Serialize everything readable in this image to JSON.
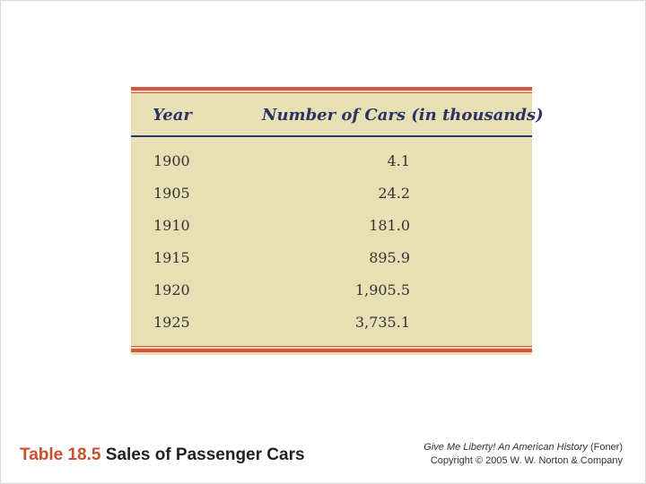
{
  "table": {
    "headers": {
      "year": "Year",
      "cars": "Number of Cars (in thousands)"
    },
    "rows": [
      {
        "year": "1900",
        "cars": "4.1"
      },
      {
        "year": "1905",
        "cars": "24.2"
      },
      {
        "year": "1910",
        "cars": "181.0"
      },
      {
        "year": "1915",
        "cars": "895.9"
      },
      {
        "year": "1920",
        "cars": "1,905.5"
      },
      {
        "year": "1925",
        "cars": "3,735.1"
      }
    ]
  },
  "caption": {
    "number": "Table 18.5",
    "title": "Sales of Passenger Cars"
  },
  "credit": {
    "book_title": "Give Me Liberty! An American History",
    "author": "(Foner)",
    "copyright": "Copyright © 2005 W. W. Norton & Company"
  },
  "colors": {
    "panel": "#e8dfb5",
    "red_rule": "#d9533f",
    "navy": "#2a3566",
    "caption_accent": "#c9502f"
  }
}
